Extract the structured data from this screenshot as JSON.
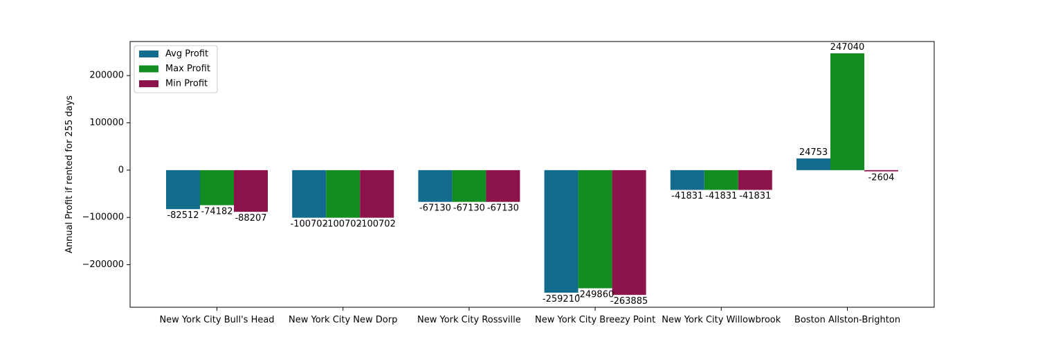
{
  "chart_data": {
    "type": "bar",
    "title": "",
    "xlabel": "",
    "ylabel": "Annual Profit if rented for 255 days",
    "ylim": [
      -290000,
      272000
    ],
    "yticks": [
      -200000,
      -100000,
      0,
      100000,
      200000
    ],
    "ytick_labels": [
      "−200000",
      "−100000",
      "0",
      "100000",
      "200000"
    ],
    "categories": [
      "New York City Bull's Head",
      "New York City New Dorp",
      "New York City Rossville",
      "New York City Breezy Point",
      "New York City Willowbrook",
      "Boston Allston-Brighton"
    ],
    "series": [
      {
        "name": "Avg Profit",
        "color": "#136b8d",
        "values": [
          -82512,
          -100702,
          -67130,
          -259210,
          -41831,
          24753
        ]
      },
      {
        "name": "Max Profit",
        "color": "#128d22",
        "values": [
          -74182,
          -100702,
          -67130,
          -249860,
          -41831,
          247040
        ]
      },
      {
        "name": "Min Profit",
        "color": "#8d134c",
        "values": [
          -88207,
          -100702,
          -67130,
          -263885,
          -41831,
          -2604
        ]
      }
    ],
    "grid": false,
    "legend_position": "top-left"
  }
}
